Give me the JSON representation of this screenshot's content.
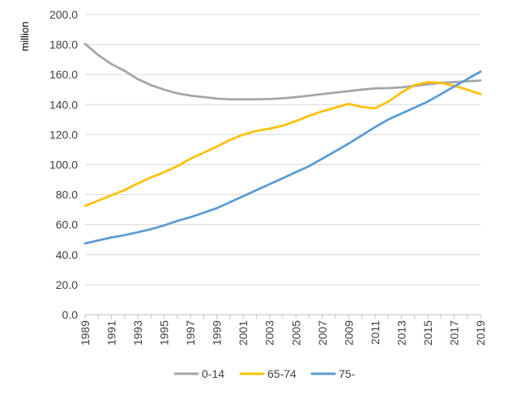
{
  "chart_data": {
    "type": "line",
    "title": "",
    "xlabel": "",
    "ylabel": "million",
    "ylim": [
      0,
      200
    ],
    "yticks": [
      "0.0",
      "20.0",
      "40.0",
      "60.0",
      "80.0",
      "100.0",
      "120.0",
      "140.0",
      "160.0",
      "180.0",
      "200.0"
    ],
    "xtick_labels": [
      "1989",
      "1991",
      "1993",
      "1995",
      "1997",
      "1999",
      "2001",
      "2003",
      "2005",
      "2007",
      "2009",
      "2011",
      "2013",
      "2015",
      "2017",
      "2019"
    ],
    "x": [
      1989,
      1990,
      1991,
      1992,
      1993,
      1994,
      1995,
      1996,
      1997,
      1998,
      1999,
      2000,
      2001,
      2002,
      2003,
      2004,
      2005,
      2006,
      2007,
      2008,
      2009,
      2010,
      2011,
      2012,
      2013,
      2014,
      2015,
      2016,
      2017,
      2018,
      2019
    ],
    "grid": "horizontal",
    "legend_position": "bottom",
    "series": [
      {
        "name": "0-14",
        "color": "#a5a5a5",
        "values": [
          180.5,
          173.0,
          167.0,
          162.5,
          157.0,
          153.0,
          150.0,
          147.5,
          146.0,
          145.0,
          144.0,
          143.5,
          143.5,
          143.5,
          143.7,
          144.2,
          145.0,
          146.0,
          147.0,
          148.0,
          149.0,
          150.0,
          150.8,
          151.0,
          151.5,
          152.5,
          153.5,
          154.5,
          155.0,
          155.5,
          156.0
        ]
      },
      {
        "name": "65-74",
        "color": "#ffc000",
        "values": [
          72.5,
          76.0,
          79.5,
          83.0,
          87.5,
          91.5,
          95.0,
          99.0,
          104.0,
          108.0,
          112.0,
          116.5,
          120.0,
          122.5,
          124.0,
          126.0,
          129.0,
          132.5,
          135.5,
          138.0,
          140.5,
          138.5,
          137.5,
          142.0,
          148.0,
          153.0,
          155.0,
          154.5,
          152.5,
          150.0,
          147.0
        ]
      },
      {
        "name": "75-",
        "color": "#5b9bd5",
        "values": [
          47.5,
          49.5,
          51.5,
          53.0,
          55.0,
          57.0,
          59.5,
          62.5,
          65.0,
          68.0,
          71.0,
          75.0,
          79.0,
          83.0,
          87.0,
          91.0,
          95.0,
          99.0,
          104.0,
          109.0,
          114.0,
          119.5,
          125.0,
          130.0,
          134.0,
          138.0,
          142.0,
          147.0,
          152.0,
          157.0,
          162.0
        ]
      }
    ]
  }
}
